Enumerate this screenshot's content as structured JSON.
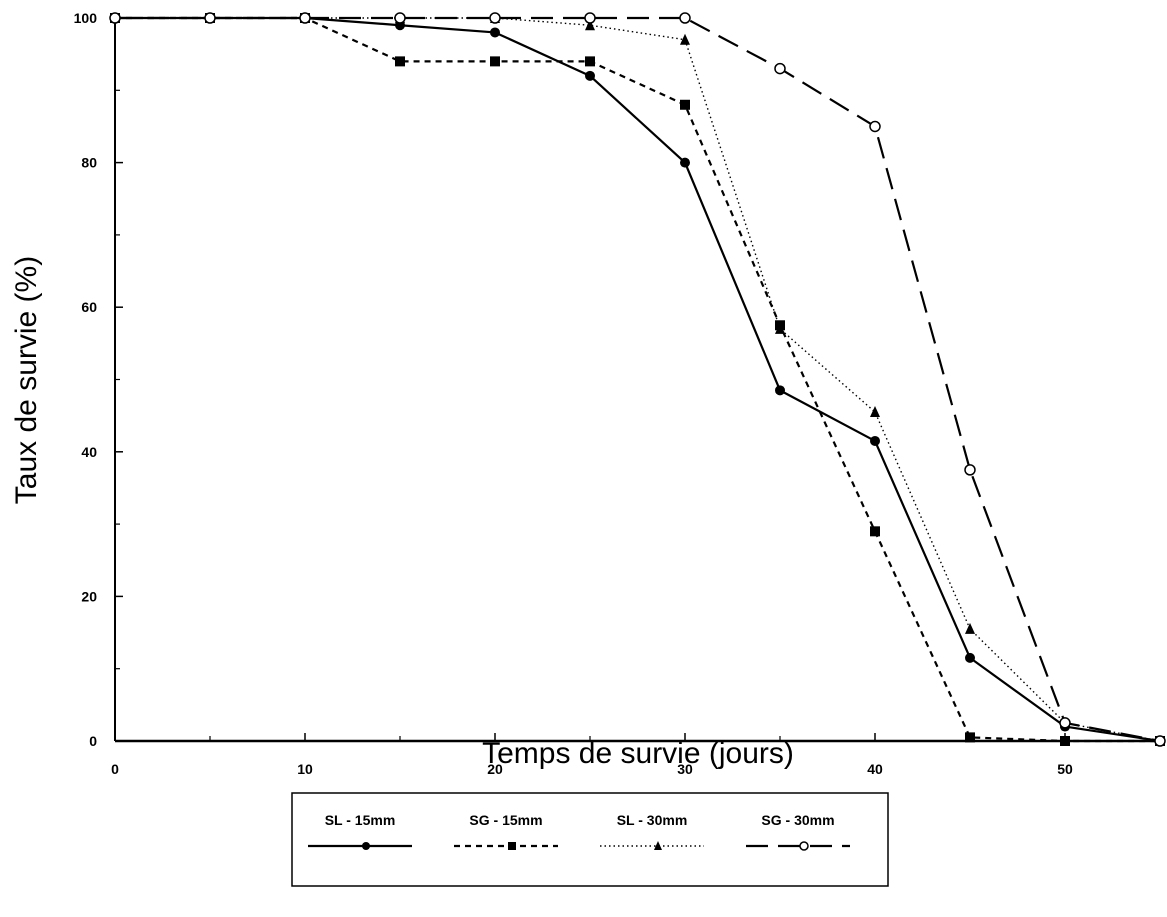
{
  "chart_data": {
    "type": "line",
    "xlabel": "Temps de survie (jours)",
    "ylabel": "Taux de survie (%)",
    "xlim": [
      0,
      55
    ],
    "ylim": [
      0,
      100
    ],
    "x_ticks": [
      "0",
      "10",
      "20",
      "30",
      "40",
      "50"
    ],
    "y_ticks": [
      "0",
      "20",
      "40",
      "60",
      "80",
      "100"
    ],
    "grid": false,
    "legend_position": "bottom",
    "series": [
      {
        "name": "SL - 15mm",
        "marker": "filled-circle",
        "dash": "solid",
        "x": [
          0,
          5,
          10,
          15,
          20,
          25,
          30,
          35,
          40,
          45,
          50,
          55
        ],
        "y": [
          100,
          100,
          100,
          99,
          98,
          92,
          80,
          48.5,
          41.5,
          11.5,
          2,
          0
        ]
      },
      {
        "name": "SG - 15mm",
        "marker": "filled-square",
        "dash": "dashed",
        "x": [
          0,
          5,
          10,
          15,
          20,
          25,
          30,
          35,
          40,
          45,
          50,
          55
        ],
        "y": [
          100,
          100,
          100,
          94,
          94,
          94,
          88,
          57.5,
          29,
          0.5,
          0,
          0
        ]
      },
      {
        "name": "SL - 30mm",
        "marker": "filled-triangle",
        "dash": "dotted",
        "x": [
          0,
          5,
          10,
          15,
          20,
          25,
          30,
          35,
          40,
          45,
          50,
          55
        ],
        "y": [
          100,
          100,
          100,
          100,
          100,
          99,
          97,
          57,
          45.5,
          15.5,
          2.5,
          0
        ]
      },
      {
        "name": "SG - 30mm",
        "marker": "open-circle",
        "dash": "long-dash",
        "x": [
          0,
          5,
          10,
          15,
          20,
          25,
          30,
          35,
          40,
          45,
          50,
          55
        ],
        "y": [
          100,
          100,
          100,
          100,
          100,
          100,
          100,
          93,
          85,
          37.5,
          2.5,
          0
        ]
      }
    ]
  }
}
